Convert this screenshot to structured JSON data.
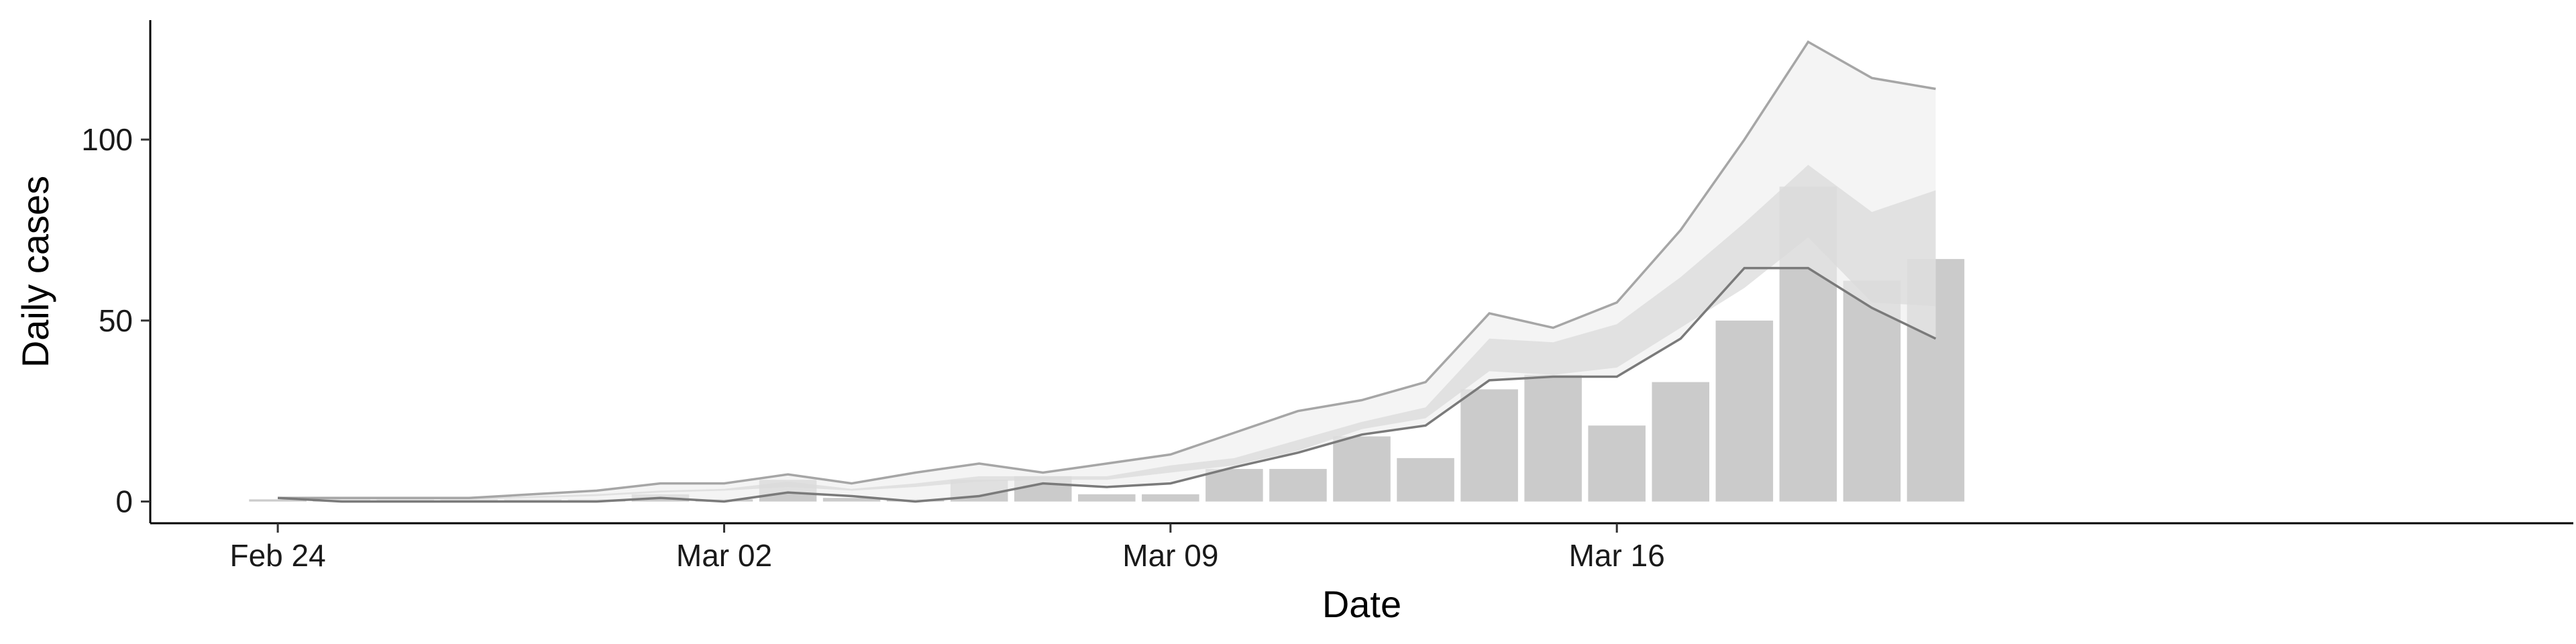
{
  "chart_data": {
    "type": "bar",
    "title": "",
    "xlabel": "Date",
    "ylabel": "Daily cases",
    "x_ticks": [
      "Feb 24",
      "Mar 02",
      "Mar 09",
      "Mar 16"
    ],
    "y_ticks": [
      "0",
      "50",
      "100"
    ],
    "ylim": [
      -6,
      133
    ],
    "x_domain": [
      "2020-02-22",
      "2020-03-31"
    ],
    "dates": [
      "2020-02-24",
      "2020-02-25",
      "2020-02-26",
      "2020-02-27",
      "2020-02-28",
      "2020-02-29",
      "2020-03-01",
      "2020-03-02",
      "2020-03-03",
      "2020-03-04",
      "2020-03-05",
      "2020-03-06",
      "2020-03-07",
      "2020-03-08",
      "2020-03-09",
      "2020-03-10",
      "2020-03-11",
      "2020-03-12",
      "2020-03-13",
      "2020-03-14",
      "2020-03-15",
      "2020-03-16",
      "2020-03-17",
      "2020-03-18",
      "2020-03-19",
      "2020-03-20",
      "2020-03-21",
      "2020-03-22"
    ],
    "series": [
      {
        "values": [
          0,
          0,
          0,
          0,
          0,
          0,
          2,
          0,
          6,
          1,
          0,
          6,
          7,
          2,
          2,
          9,
          9,
          18,
          12,
          31,
          35,
          21,
          33,
          50,
          87,
          61,
          67,
          null
        ]
      },
      {
        "values": [
          1,
          0.8,
          0.8,
          0.8,
          1.2,
          2,
          2.8,
          3.4,
          4.6,
          3.4,
          4.8,
          6.6,
          6.6,
          6.8,
          9.2,
          11.2,
          15.6,
          21.2,
          24.6,
          38.6,
          37.4,
          40.4,
          52,
          63.6,
          82.8,
          67.4,
          65.6,
          null
        ]
      },
      {
        "values": [
          1,
          1,
          1,
          1,
          2,
          3,
          5,
          5,
          7.5,
          5,
          8,
          10.5,
          8,
          10.5,
          13,
          19,
          25,
          28,
          33,
          52,
          48,
          55,
          75,
          100,
          127,
          117,
          114,
          null
        ]
      },
      {
        "values": [
          1,
          0,
          0,
          0,
          0,
          0,
          1,
          0,
          2.5,
          1.5,
          0,
          1.5,
          5,
          4,
          5,
          9.5,
          13.5,
          18.5,
          21,
          33.5,
          34.5,
          34.5,
          45,
          64.5,
          64.5,
          53.5,
          45,
          null
        ]
      },
      {
        "values": [
          1,
          1,
          1,
          1,
          1.5,
          2,
          3,
          3.5,
          5.5,
          3.5,
          5,
          7,
          7,
          7,
          10,
          12,
          17,
          22,
          26,
          45,
          44,
          49,
          62,
          77,
          93,
          80,
          86,
          null
        ]
      },
      {
        "values": [
          1,
          0.5,
          0.5,
          0.5,
          1,
          1.5,
          2.5,
          3,
          4,
          3,
          4,
          5.5,
          6,
          6,
          8,
          10,
          14,
          20,
          23,
          36,
          35,
          37,
          48,
          59,
          73,
          55,
          54,
          null
        ]
      }
    ],
    "colors": {
      "bars": "#cbcbcb",
      "outer_band": "#ededed",
      "inner_band": "#d9d9d9",
      "upper_line": "#a6a6a6",
      "lower_line": "#7a7a7a"
    },
    "grid": false,
    "legend": "none"
  }
}
